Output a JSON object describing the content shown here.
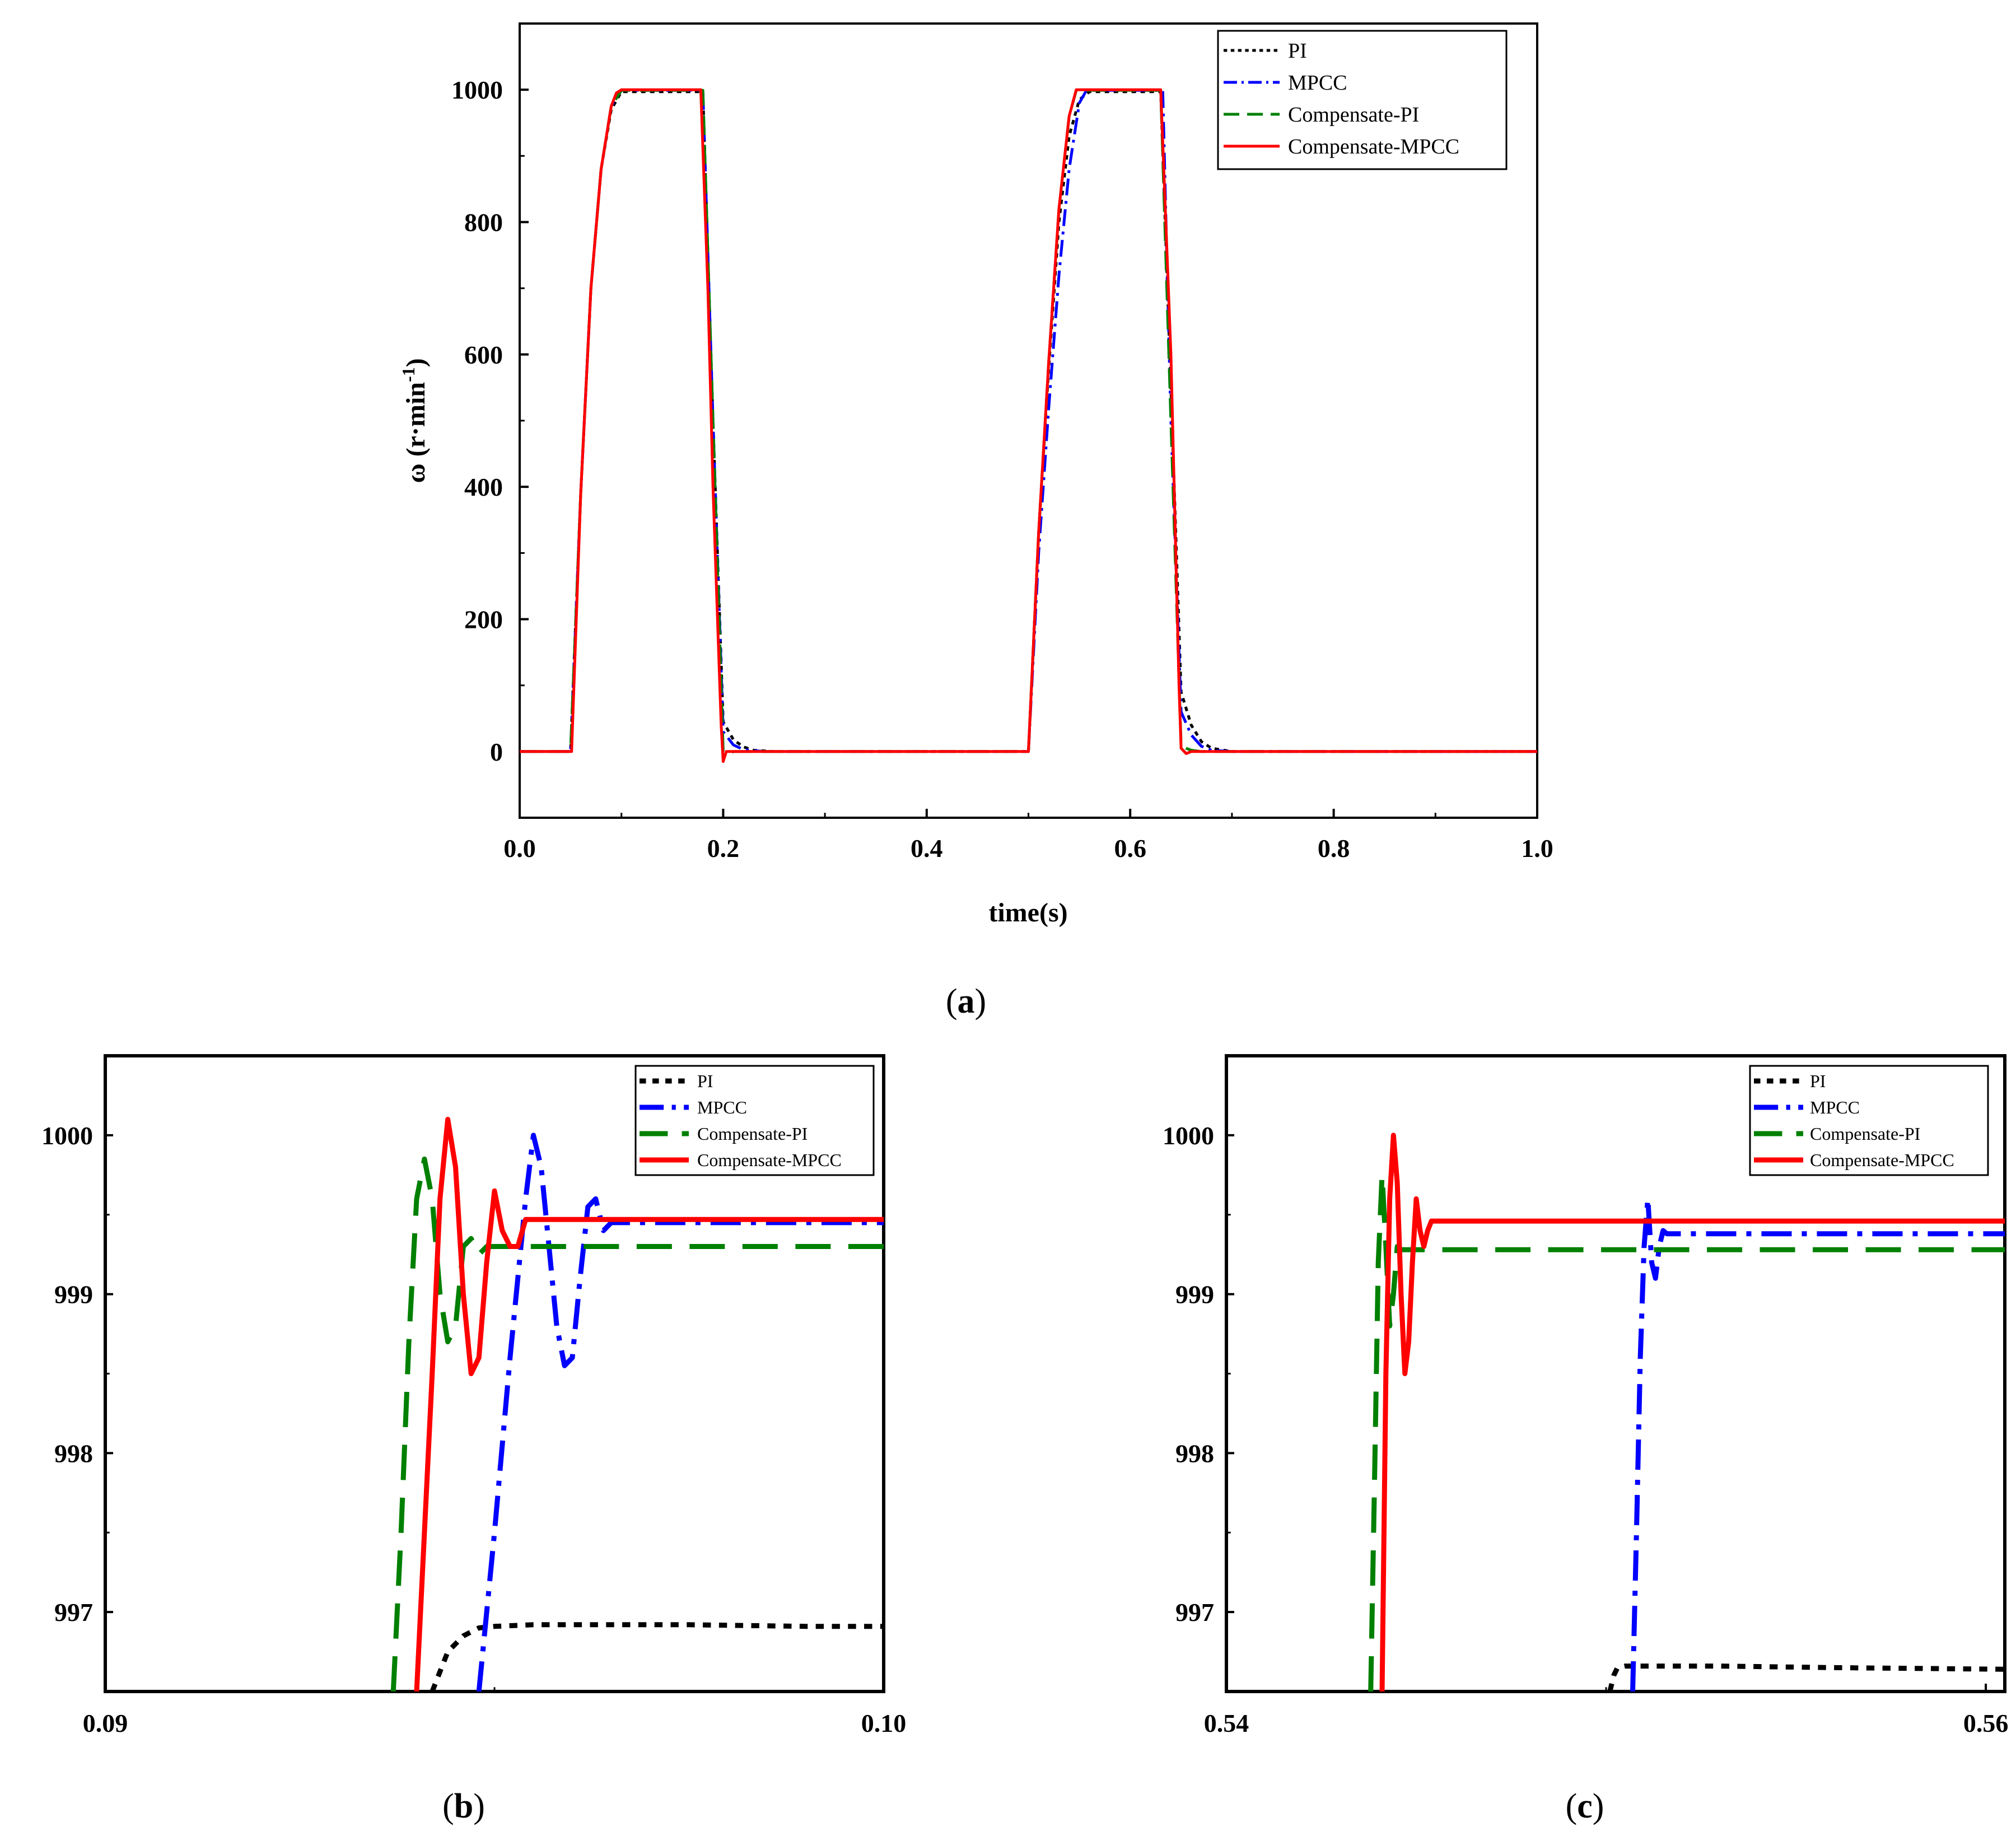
{
  "colors": {
    "PI": "#000000",
    "MPCC": "#0000ff",
    "Compensate-PI": "#008000",
    "Compensate-MPCC": "#ff0000"
  },
  "chart_data": [
    {
      "id": "a",
      "caption": {
        "open": "(",
        "letter": "a",
        "close": ")"
      },
      "type": "line",
      "xlabel": "time(s)",
      "ylabel": {
        "main": "ω (r·min",
        "sup": "-1",
        "close": ")"
      },
      "xlim": [
        0.0,
        1.0
      ],
      "ylim": [
        -100,
        1100
      ],
      "xticks": [
        0.0,
        0.2,
        0.4,
        0.6,
        0.8,
        1.0
      ],
      "xtick_labels": [
        "0.0",
        "0.2",
        "0.4",
        "0.6",
        "0.8",
        "1.0"
      ],
      "yticks": [
        0,
        200,
        400,
        600,
        800,
        1000
      ],
      "ytick_labels": [
        "0",
        "200",
        "400",
        "600",
        "800",
        "1000"
      ],
      "legend": [
        "PI",
        "MPCC",
        "Compensate-PI",
        "Compensate-MPCC"
      ],
      "legend_position": "top-right",
      "series": [
        {
          "name": "PI",
          "style": "dotted",
          "x": [
            0,
            0.05,
            0.06,
            0.07,
            0.08,
            0.09,
            0.1,
            0.18,
            0.19,
            0.2,
            0.21,
            0.22,
            0.23,
            0.25,
            0.5,
            0.51,
            0.52,
            0.53,
            0.54,
            0.55,
            0.56,
            0.63,
            0.64,
            0.65,
            0.66,
            0.67,
            0.68,
            0.7,
            1.0
          ],
          "y": [
            0,
            0,
            390,
            700,
            880,
            970,
            997,
            997,
            500,
            45,
            18,
            7,
            2,
            0,
            0,
            330,
            580,
            800,
            930,
            985,
            997,
            997,
            550,
            90,
            40,
            15,
            5,
            0,
            0
          ]
        },
        {
          "name": "MPCC",
          "style": "dashdot",
          "x": [
            0,
            0.05,
            0.06,
            0.07,
            0.08,
            0.09,
            0.1,
            0.18,
            0.19,
            0.2,
            0.21,
            0.22,
            0.24,
            0.5,
            0.51,
            0.52,
            0.53,
            0.54,
            0.55,
            0.557,
            0.632,
            0.64,
            0.65,
            0.66,
            0.67,
            0.68,
            0.7,
            1.0
          ],
          "y": [
            0,
            0,
            390,
            700,
            880,
            975,
            999,
            999,
            500,
            30,
            10,
            3,
            0,
            0,
            300,
            520,
            720,
            880,
            980,
            999,
            999,
            500,
            60,
            25,
            8,
            2,
            0,
            0
          ]
        },
        {
          "name": "Compensate-PI",
          "style": "dashed",
          "x": [
            0,
            0.05,
            0.06,
            0.07,
            0.08,
            0.09,
            0.1,
            0.18,
            0.19,
            0.2,
            0.205,
            0.21,
            0.22,
            0.5,
            0.51,
            0.52,
            0.53,
            0.54,
            0.547,
            0.63,
            0.64,
            0.65,
            0.655,
            0.66,
            0.67,
            1.0
          ],
          "y": [
            0,
            0,
            390,
            700,
            880,
            975,
            999,
            999,
            500,
            0,
            -5,
            0,
            0,
            0,
            330,
            590,
            820,
            960,
            999,
            999,
            500,
            10,
            5,
            2,
            0,
            0
          ]
        },
        {
          "name": "Compensate-MPCC",
          "style": "solid",
          "x": [
            0,
            0.05,
            0.051,
            0.06,
            0.07,
            0.08,
            0.09,
            0.095,
            0.1,
            0.178,
            0.185,
            0.19,
            0.198,
            0.2,
            0.203,
            0.21,
            0.5,
            0.51,
            0.52,
            0.53,
            0.54,
            0.547,
            0.63,
            0.64,
            0.648,
            0.65,
            0.655,
            0.66,
            1.0
          ],
          "y": [
            0,
            0,
            0,
            390,
            700,
            880,
            975,
            995,
            1000,
            1000,
            700,
            400,
            40,
            -15,
            0,
            0,
            0,
            330,
            590,
            820,
            960,
            1000,
            1000,
            600,
            100,
            5,
            -3,
            0,
            0
          ]
        }
      ]
    },
    {
      "id": "b",
      "caption": {
        "open": "(",
        "letter": "b",
        "close": ")"
      },
      "type": "line",
      "xlabel": "",
      "ylabel": "",
      "xlim": [
        0.09,
        0.1
      ],
      "ylim": [
        996.5,
        1000.5
      ],
      "xticks": [
        0.09,
        0.1
      ],
      "xtick_labels": [
        "0.09",
        "0.10"
      ],
      "yticks": [
        997,
        998,
        999,
        1000
      ],
      "ytick_labels": [
        "997",
        "998",
        "999",
        "1000"
      ],
      "legend": [
        "PI",
        "MPCC",
        "Compensate-PI",
        "Compensate-MPCC"
      ],
      "legend_position": "top-right",
      "series": [
        {
          "name": "PI",
          "style": "dotted",
          "x": [
            0.0942,
            0.0944,
            0.0946,
            0.0948,
            0.095,
            0.0955,
            0.096,
            0.0975,
            0.099,
            0.1
          ],
          "y": [
            996.5,
            996.75,
            996.85,
            996.9,
            996.91,
            996.92,
            996.92,
            996.92,
            996.91,
            996.91
          ]
        },
        {
          "name": "MPCC",
          "style": "dashdot",
          "x": [
            0.0948,
            0.095,
            0.0952,
            0.0954,
            0.0955,
            0.0956,
            0.0957,
            0.0958,
            0.0959,
            0.096,
            0.0961,
            0.0962,
            0.0963,
            0.0964,
            0.0965,
            0.0966,
            0.0967,
            0.097,
            0.1
          ],
          "y": [
            996.5,
            997.5,
            998.6,
            999.6,
            1000.0,
            999.8,
            999.3,
            998.8,
            998.55,
            998.6,
            999.1,
            999.55,
            999.6,
            999.4,
            999.45,
            999.45,
            999.45,
            999.45,
            999.45
          ]
        },
        {
          "name": "Compensate-PI",
          "style": "dashed",
          "x": [
            0.0937,
            0.0938,
            0.0939,
            0.094,
            0.0941,
            0.0942,
            0.0943,
            0.0944,
            0.0945,
            0.0946,
            0.0947,
            0.0948,
            0.0949,
            0.095,
            0.0952,
            0.0955,
            0.1
          ],
          "y": [
            996.5,
            997.5,
            998.7,
            999.6,
            999.85,
            999.6,
            999.0,
            998.7,
            998.8,
            999.3,
            999.35,
            999.25,
            999.3,
            999.3,
            999.3,
            999.3,
            999.3
          ]
        },
        {
          "name": "Compensate-MPCC",
          "style": "solid",
          "x": [
            0.094,
            0.0942,
            0.0943,
            0.0944,
            0.0945,
            0.0946,
            0.0947,
            0.0948,
            0.0949,
            0.095,
            0.0951,
            0.0952,
            0.0953,
            0.0954,
            0.0955,
            0.0956,
            0.1
          ],
          "y": [
            996.5,
            998.5,
            999.6,
            1000.1,
            999.8,
            999.0,
            998.5,
            998.6,
            999.2,
            999.65,
            999.4,
            999.3,
            999.3,
            999.47,
            999.47,
            999.47,
            999.47
          ]
        }
      ]
    },
    {
      "id": "c",
      "caption": {
        "open": "(",
        "letter": "c",
        "close": ")"
      },
      "type": "line",
      "xlabel": "",
      "ylabel": "",
      "xlim": [
        0.54,
        0.5605
      ],
      "ylim": [
        996.5,
        1000.5
      ],
      "xticks": [
        0.54,
        0.56
      ],
      "xtick_labels": [
        "0.54",
        "0.56"
      ],
      "yticks": [
        997,
        998,
        999,
        1000
      ],
      "ytick_labels": [
        "997",
        "998",
        "999",
        "1000"
      ],
      "legend": [
        "PI",
        "MPCC",
        "Compensate-PI",
        "Compensate-MPCC"
      ],
      "legend_position": "top-right",
      "series": [
        {
          "name": "PI",
          "style": "dotted",
          "x": [
            0.5501,
            0.5502,
            0.5503,
            0.5505,
            0.551,
            0.553,
            0.556,
            0.5605
          ],
          "y": [
            996.5,
            996.6,
            996.65,
            996.66,
            996.66,
            996.66,
            996.65,
            996.64
          ]
        },
        {
          "name": "MPCC",
          "style": "dashdot",
          "x": [
            0.5507,
            0.5508,
            0.5509,
            0.551,
            0.5511,
            0.5512,
            0.5513,
            0.5514,
            0.5515,
            0.5516,
            0.552,
            0.5605
          ],
          "y": [
            996.5,
            997.5,
            998.6,
            999.3,
            999.6,
            999.2,
            999.1,
            999.3,
            999.4,
            999.38,
            999.38,
            999.38
          ]
        },
        {
          "name": "Compensate-PI",
          "style": "dashed",
          "x": [
            0.5438,
            0.5439,
            0.544,
            0.5441,
            0.5442,
            0.5443,
            0.5444,
            0.5445,
            0.5446,
            0.5447,
            0.5448,
            0.545,
            0.5605
          ],
          "y": [
            996.5,
            997.8,
            999.2,
            999.75,
            999.3,
            998.8,
            999.0,
            999.3,
            999.28,
            999.28,
            999.28,
            999.28,
            999.28
          ]
        },
        {
          "name": "Compensate-MPCC",
          "style": "solid",
          "x": [
            0.5441,
            0.5442,
            0.5443,
            0.5444,
            0.5445,
            0.5446,
            0.5447,
            0.5448,
            0.5449,
            0.545,
            0.5451,
            0.5452,
            0.5453,
            0.5454,
            0.5455,
            0.5605
          ],
          "y": [
            996.5,
            998.5,
            999.6,
            1000.0,
            999.7,
            999.0,
            998.5,
            998.7,
            999.2,
            999.6,
            999.4,
            999.3,
            999.4,
            999.46,
            999.46,
            999.46
          ]
        }
      ]
    }
  ]
}
